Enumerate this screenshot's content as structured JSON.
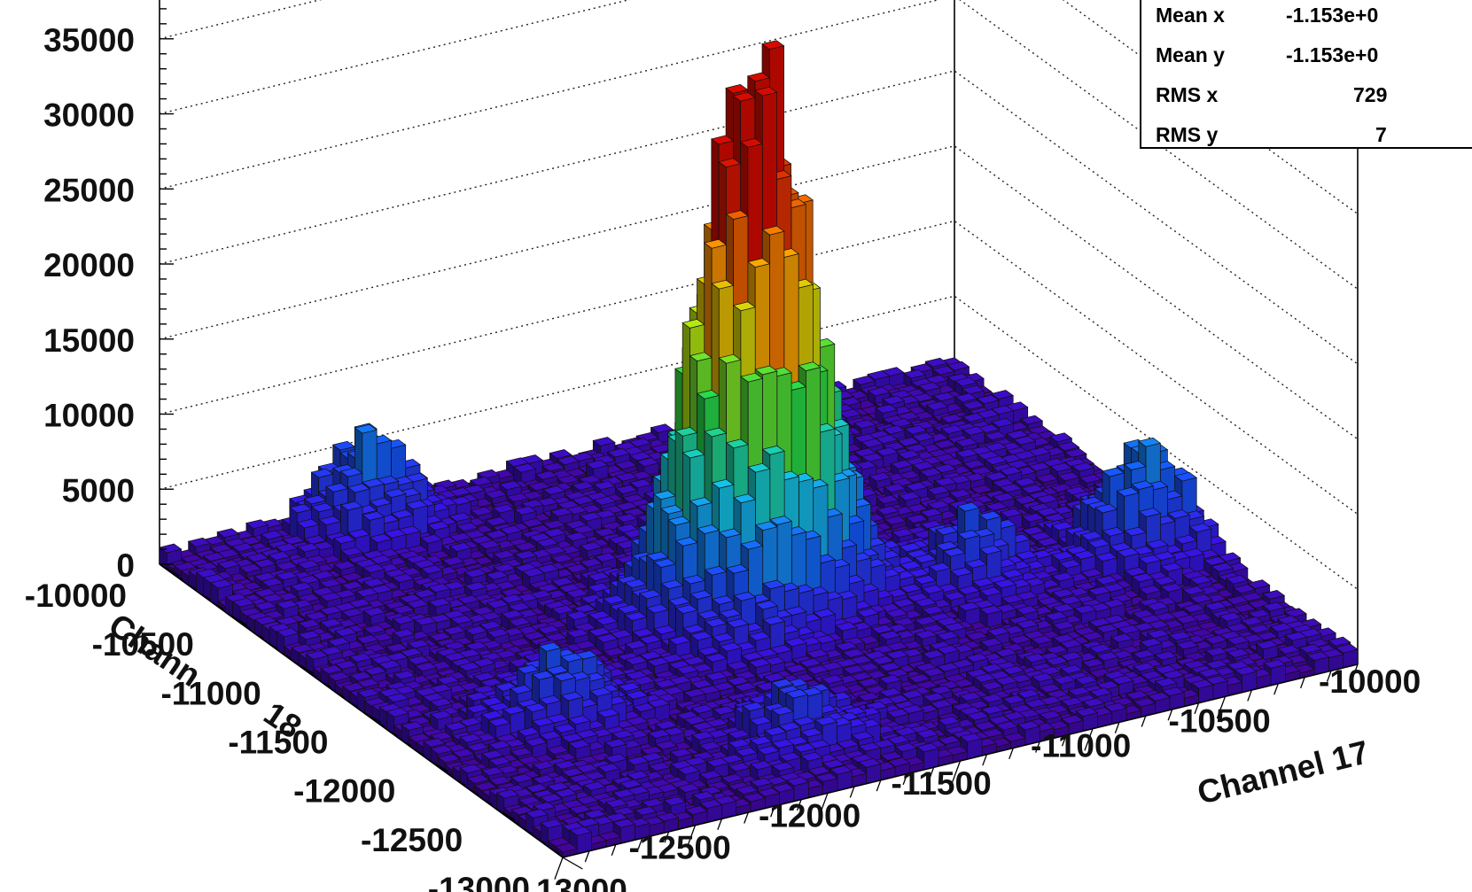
{
  "chart_data": {
    "type": "lego3d",
    "z_ticks": [
      "0",
      "5000",
      "10000",
      "15000",
      "20000",
      "25000",
      "30000",
      "35000"
    ],
    "zlim": [
      0,
      39000
    ],
    "y_ticks": [
      "-10000",
      "-10500",
      "-11000",
      "-11500",
      "-12000",
      "-12500",
      "-13000"
    ],
    "x_ticks": [
      "13000",
      "-12500",
      "-12000",
      "-11500",
      "-11000",
      "-10500",
      "-10000"
    ],
    "ylabel_partial": "Chann",
    "ylabel_suffix": "18",
    "xlabel": "Channel 17",
    "grid": true,
    "range": [
      -13000,
      -10000
    ],
    "peak": {
      "x": -11520,
      "y": -11470,
      "value": 31000
    },
    "clusters": [
      {
        "x": -11500,
        "y": -11550,
        "value": 9000
      },
      {
        "x": -10200,
        "y": -11800,
        "value": 8500
      },
      {
        "x": -12300,
        "y": -10150,
        "value": 7500
      },
      {
        "x": -11300,
        "y": -11500,
        "value": 5000
      },
      {
        "x": -12500,
        "y": -12000,
        "value": 5000
      },
      {
        "x": -10800,
        "y": -11700,
        "value": 4500
      },
      {
        "x": -11900,
        "y": -12600,
        "value": 4000
      },
      {
        "x": -11700,
        "y": -11800,
        "value": 3500
      }
    ],
    "stats": [
      {
        "label": "Mean x",
        "value": "-1.153e+0"
      },
      {
        "label": "Mean y",
        "value": "-1.153e+0"
      },
      {
        "label": "RMS x",
        "value": "729"
      },
      {
        "label": "RMS y",
        "value": "7"
      }
    ]
  }
}
